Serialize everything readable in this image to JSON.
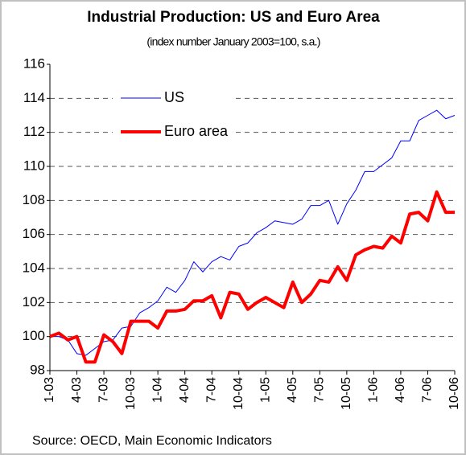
{
  "chart_data": {
    "type": "line",
    "title": "Industrial Production: US and Euro Area",
    "subtitle": "(index number January 2003=100, s.a.)",
    "source": "Source: OECD, Main Economic Indicators",
    "categories": [
      "1-03",
      null,
      null,
      "4-03",
      null,
      null,
      "7-03",
      null,
      null,
      "10-03",
      null,
      null,
      "1-04",
      null,
      null,
      "4-04",
      null,
      null,
      "7-04",
      null,
      null,
      "10-04",
      null,
      null,
      "1-05",
      null,
      null,
      "4-05",
      null,
      null,
      "7-05",
      null,
      null,
      "10-05",
      null,
      null,
      "1-06",
      null,
      null,
      "4-06",
      null,
      null,
      "7-06",
      null,
      null,
      "10-06"
    ],
    "series": [
      {
        "name": "US",
        "color": "#0000ff",
        "width": 1,
        "values": [
          100.0,
          100.0,
          99.8,
          99.0,
          98.9,
          99.3,
          99.7,
          99.8,
          100.5,
          100.6,
          101.4,
          101.7,
          102.1,
          102.9,
          102.6,
          103.3,
          104.4,
          103.8,
          104.4,
          104.7,
          104.5,
          105.3,
          105.5,
          106.1,
          106.4,
          106.8,
          106.7,
          106.6,
          106.9,
          107.7,
          107.7,
          108.0,
          106.6,
          107.8,
          108.6,
          109.7,
          109.7,
          110.1,
          110.5,
          111.5,
          111.5,
          112.7,
          113.0,
          113.3,
          112.8,
          113.0
        ]
      },
      {
        "name": "Euro area",
        "color": "#ff0000",
        "width": 4,
        "values": [
          100.0,
          100.2,
          99.8,
          100.0,
          98.5,
          98.5,
          100.1,
          99.7,
          99.0,
          100.9,
          100.9,
          100.9,
          100.5,
          101.5,
          101.5,
          101.6,
          102.1,
          102.1,
          102.4,
          101.1,
          102.6,
          102.5,
          101.6,
          102.0,
          102.3,
          102.0,
          101.7,
          103.2,
          102.0,
          102.5,
          103.3,
          103.2,
          104.1,
          103.3,
          104.8,
          105.1,
          105.3,
          105.2,
          105.9,
          105.5,
          107.2,
          107.3,
          106.8,
          108.5,
          107.3,
          107.3
        ]
      }
    ],
    "ylim": [
      98,
      116
    ],
    "yticks": [
      98,
      100,
      102,
      104,
      106,
      108,
      110,
      112,
      114,
      116
    ],
    "grid": true
  }
}
